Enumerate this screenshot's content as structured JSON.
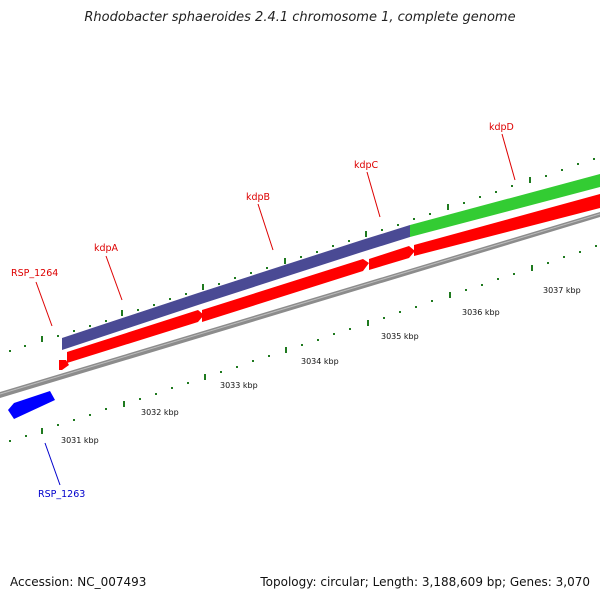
{
  "title": "Rhodobacter sphaeroides 2.4.1 chromosome 1, complete genome",
  "footer": {
    "accession": "Accession: NC_007493",
    "summary": "Topology: circular; Length: 3,188,609 bp; Genes: 3,070"
  },
  "colors": {
    "background": "#ffffff",
    "axis": "#8c8c8c",
    "tick": "#1f7a1f",
    "forward_gene": "#ff0000",
    "reverse_gene": "#0000ff",
    "operon_purple": "#4a4a94",
    "operon_green": "#33cc33",
    "label_forward": "#dd0000",
    "label_reverse": "#0000cc"
  },
  "scale": {
    "tick_labels": [
      "3031 kbp",
      "3032 kbp",
      "3033 kbp",
      "3034 kbp",
      "3035 kbp",
      "3036 kbp",
      "3037 kbp"
    ]
  },
  "genes": [
    {
      "name": "RSP_1264",
      "strand": "forward"
    },
    {
      "name": "kdpA",
      "strand": "forward"
    },
    {
      "name": "kdpB",
      "strand": "forward"
    },
    {
      "name": "kdpC",
      "strand": "forward"
    },
    {
      "name": "kdpD",
      "strand": "forward"
    },
    {
      "name": "RSP_1263",
      "strand": "reverse"
    }
  ]
}
